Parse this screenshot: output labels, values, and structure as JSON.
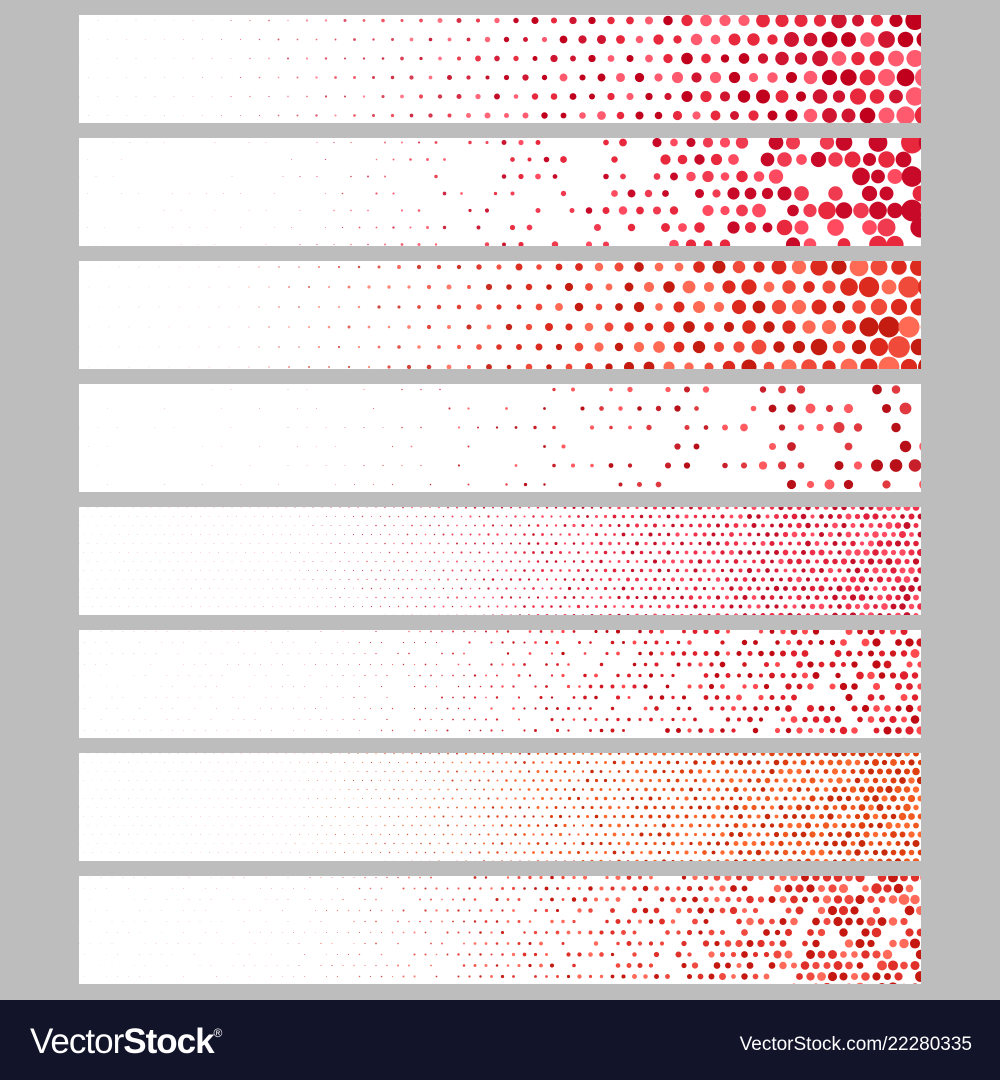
{
  "banners": [
    {
      "palette": [
        "#c0001c",
        "#e8283c",
        "#ff5a6e",
        "#d01530"
      ]
    },
    {
      "palette": [
        "#e8283c",
        "#ff4a60",
        "#c80a28",
        "#f03a50"
      ]
    },
    {
      "palette": [
        "#c41c10",
        "#f04a3a",
        "#ff6a55",
        "#dc2a1e"
      ]
    },
    {
      "palette": [
        "#c8202a",
        "#ff5a60",
        "#e03a40",
        "#b81018"
      ]
    },
    {
      "palette": [
        "#e0203a",
        "#ff4a62",
        "#c41028",
        "#f0304a"
      ]
    },
    {
      "palette": [
        "#c00a14",
        "#e0202c",
        "#ff4a50",
        "#d21820"
      ]
    },
    {
      "palette": [
        "#e04010",
        "#ff6a30",
        "#c82a0a",
        "#f05a20"
      ]
    },
    {
      "palette": [
        "#e0302a",
        "#ff6a5a",
        "#c41810",
        "#f04a40"
      ]
    }
  ],
  "footer": {
    "logo_light": "Vector",
    "logo_bold": "Stock",
    "logo_mark": "®",
    "url": "VectorStock.com/22280335"
  }
}
